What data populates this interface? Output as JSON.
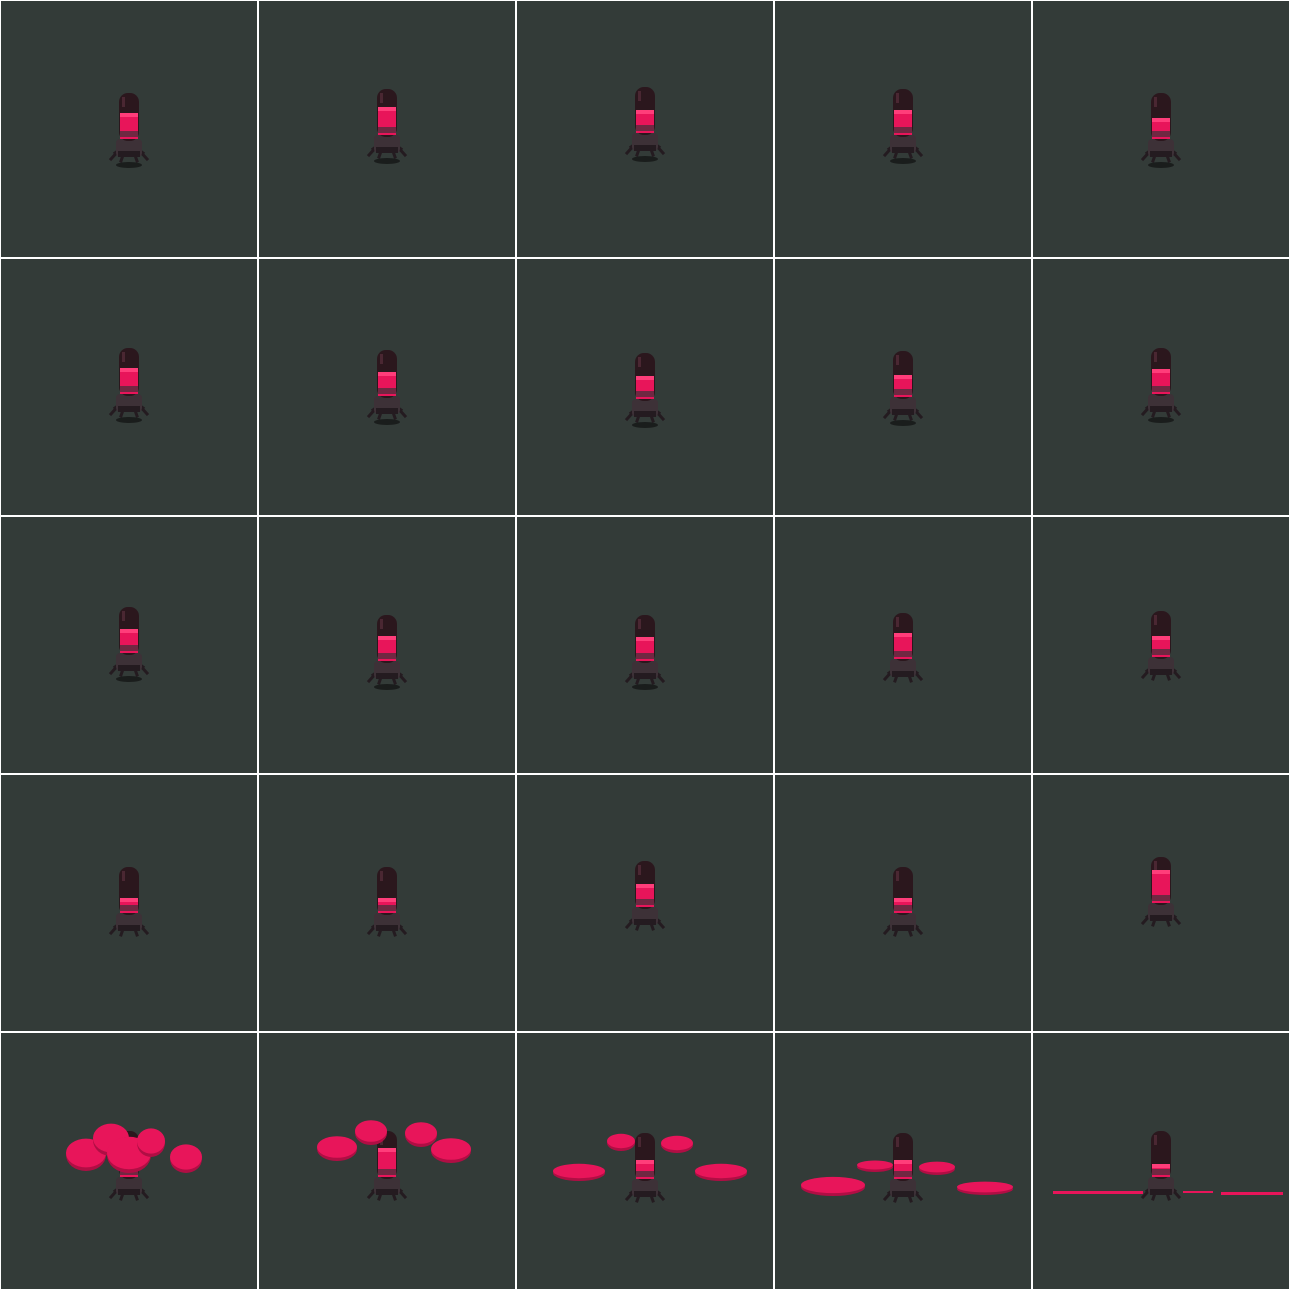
{
  "sheet": {
    "columns": 5,
    "rows": 5,
    "frame_count": 25,
    "colors": {
      "grid_line": "#ffffff",
      "background": "#333b38",
      "glass": "#2b171d",
      "glass_highlight": "#4a2732",
      "liquid": "#e8155a",
      "liquid_light": "#ff3d7a",
      "base": "#3d3137",
      "base_dark": "#241b20",
      "shadow": "#1a1d1c",
      "splash": "#e8155a",
      "splash_dark": "#b00e44"
    }
  },
  "frames": [
    {
      "liquid_level": 0.62,
      "phase": "bob",
      "splash": null
    },
    {
      "liquid_level": 0.66,
      "phase": "bob",
      "splash": null
    },
    {
      "liquid_level": 0.55,
      "phase": "bob",
      "splash": null
    },
    {
      "liquid_level": 0.6,
      "phase": "bob",
      "splash": null
    },
    {
      "liquid_level": 0.5,
      "phase": "bob",
      "splash": null
    },
    {
      "liquid_level": 0.62,
      "phase": "bob",
      "splash": null
    },
    {
      "liquid_level": 0.58,
      "phase": "bob",
      "splash": null
    },
    {
      "liquid_level": 0.55,
      "phase": "bob",
      "splash": null
    },
    {
      "liquid_level": 0.52,
      "phase": "bob",
      "splash": null
    },
    {
      "liquid_level": 0.6,
      "phase": "bob",
      "splash": null
    },
    {
      "liquid_level": 0.58,
      "phase": "bob",
      "splash": null
    },
    {
      "liquid_level": 0.6,
      "phase": "bob",
      "splash": null
    },
    {
      "liquid_level": 0.56,
      "phase": "bob",
      "splash": null
    },
    {
      "liquid_level": 0.62,
      "phase": "idle",
      "splash": null
    },
    {
      "liquid_level": 0.5,
      "phase": "idle",
      "splash": null
    },
    {
      "liquid_level": 0.35,
      "phase": "idle",
      "splash": null
    },
    {
      "liquid_level": 0.35,
      "phase": "idle",
      "splash": null
    },
    {
      "liquid_level": 0.55,
      "phase": "idle",
      "splash": null
    },
    {
      "liquid_level": 0.35,
      "phase": "idle",
      "splash": null
    },
    {
      "liquid_level": 0.78,
      "phase": "idle",
      "splash": null
    },
    {
      "liquid_level": 0.85,
      "phase": "burst",
      "splash": "blobs-large"
    },
    {
      "liquid_level": 0.7,
      "phase": "burst",
      "splash": "blobs-spread"
    },
    {
      "liquid_level": 0.45,
      "phase": "burst",
      "splash": "blobs-falling"
    },
    {
      "liquid_level": 0.45,
      "phase": "burst",
      "splash": "blobs-landing"
    },
    {
      "liquid_level": 0.3,
      "phase": "burst",
      "splash": "puddle"
    }
  ]
}
